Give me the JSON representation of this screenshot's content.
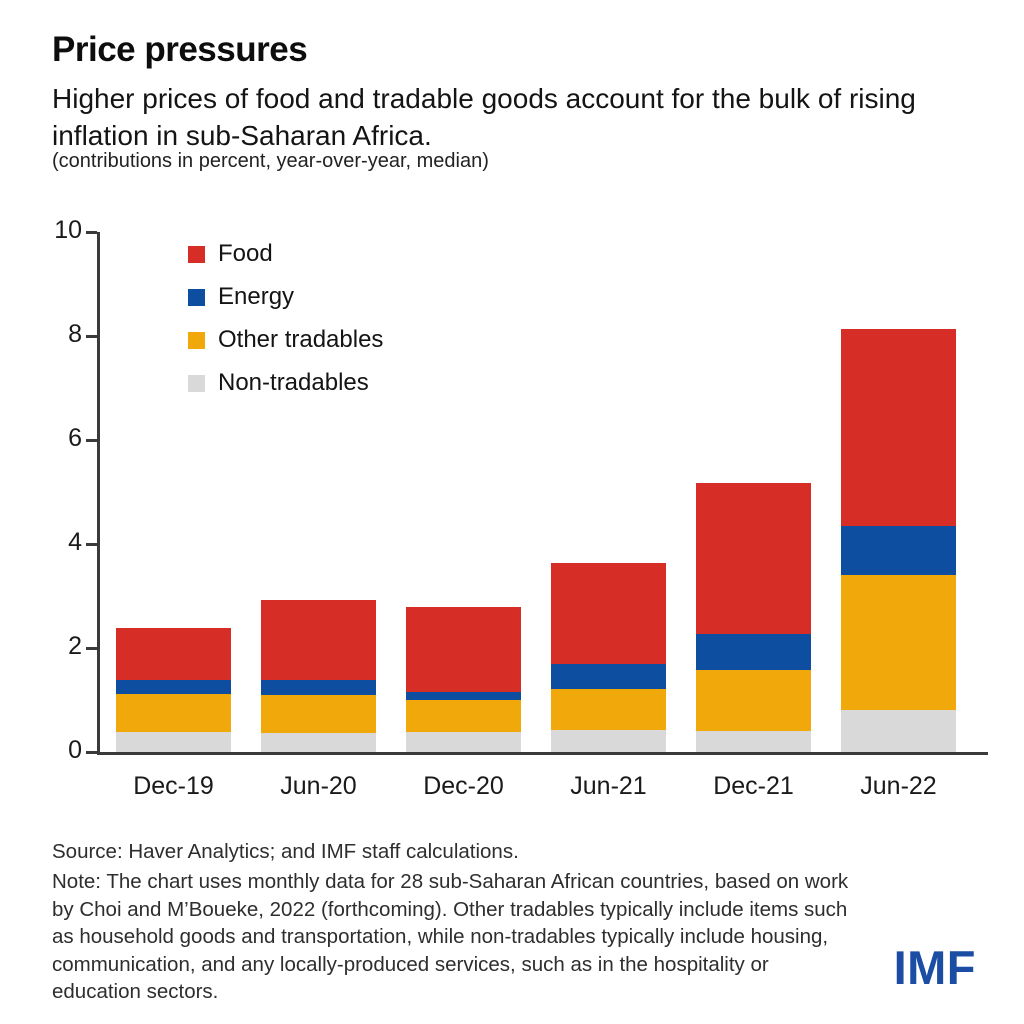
{
  "header": {
    "title": "Price pressures",
    "subtitle": "Higher prices of food and tradable goods account for the bulk of rising inflation in sub-Saharan Africa.",
    "caption": "(contributions in percent, year-over-year, median)"
  },
  "chart_data": {
    "type": "bar",
    "stacked": true,
    "title": "Price pressures",
    "ylabel": "contributions in percent, year-over-year, median",
    "categories": [
      "Dec-19",
      "Jun-20",
      "Dec-20",
      "Jun-21",
      "Dec-21",
      "Jun-22"
    ],
    "series": [
      {
        "name": "Non-tradables",
        "color": "#d9d9d9",
        "values": [
          0.38,
          0.37,
          0.39,
          0.42,
          0.4,
          0.8
        ]
      },
      {
        "name": "Other tradables",
        "color": "#f0a80a",
        "values": [
          0.74,
          0.73,
          0.61,
          0.8,
          1.18,
          2.6
        ]
      },
      {
        "name": "Energy",
        "color": "#0d4ea0",
        "values": [
          0.27,
          0.28,
          0.15,
          0.47,
          0.68,
          0.95
        ]
      },
      {
        "name": "Food",
        "color": "#d62d26",
        "values": [
          0.99,
          1.54,
          1.64,
          1.95,
          2.91,
          3.78
        ]
      }
    ],
    "totals": [
      2.38,
      2.92,
      2.79,
      3.64,
      5.17,
      8.13
    ],
    "legend_order": [
      "Food",
      "Energy",
      "Other tradables",
      "Non-tradables"
    ],
    "legend_position": "top-left-inside",
    "ylim": [
      0,
      10
    ],
    "yticks": [
      0,
      2,
      4,
      6,
      8,
      10
    ],
    "grid": false
  },
  "footer": {
    "source": "Source: Haver Analytics; and IMF staff calculations.",
    "note": "Note: The chart uses monthly data for 28 sub-Saharan African countries, based on work by Choi and M’Boueke, 2022 (forthcoming). Other tradables typically include items such as household goods and transportation, while non-tradables typically include housing, communication, and any locally-produced services, such as in the hospitality or education sectors.",
    "logo": "IMF",
    "logo_color": "#1b4da4"
  }
}
